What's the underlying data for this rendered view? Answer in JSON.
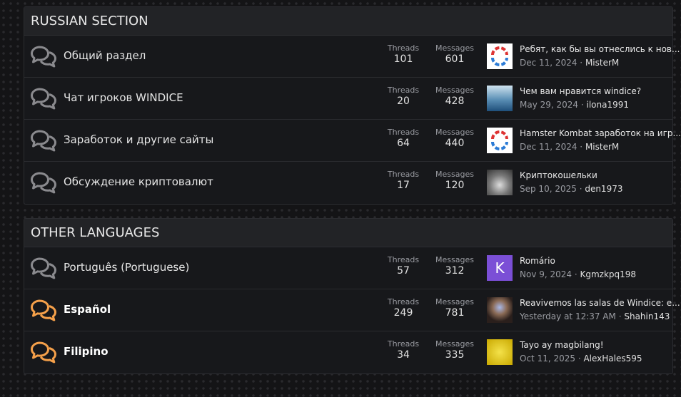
{
  "sections": [
    {
      "title": "RUSSIAN SECTION",
      "forums": [
        {
          "name": "Общий раздел",
          "unread": false,
          "threads_label": "Threads",
          "threads": "101",
          "messages_label": "Messages",
          "messages": "601",
          "latest_title": "Ребят, как бы вы отнеслись к нов...",
          "latest_date": "Dec 11, 2024",
          "latest_user": "MisterM",
          "avatar": "logo"
        },
        {
          "name": "Чат игроков WINDICE",
          "unread": false,
          "threads_label": "Threads",
          "threads": "20",
          "messages_label": "Messages",
          "messages": "428",
          "latest_title": "Чем вам нравится windice?",
          "latest_date": "May 29, 2024",
          "latest_user": "ilona1991",
          "avatar": "photo-sea"
        },
        {
          "name": "Заработок и другие сайты",
          "unread": false,
          "threads_label": "Threads",
          "threads": "64",
          "messages_label": "Messages",
          "messages": "440",
          "latest_title": "Hamster Kombat заработок на игр...",
          "latest_date": "Dec 11, 2024",
          "latest_user": "MisterM",
          "avatar": "logo"
        },
        {
          "name": "Обсуждение криптовалют",
          "unread": false,
          "threads_label": "Threads",
          "threads": "17",
          "messages_label": "Messages",
          "messages": "120",
          "latest_title": "Криптокошельки",
          "latest_date": "Sep 10, 2025",
          "latest_user": "den1973",
          "avatar": "photo-wolf"
        }
      ]
    },
    {
      "title": "OTHER LANGUAGES",
      "forums": [
        {
          "name": "Português (Portuguese)",
          "unread": false,
          "threads_label": "Threads",
          "threads": "57",
          "messages_label": "Messages",
          "messages": "312",
          "latest_title": "Romário",
          "latest_date": "Nov 9, 2024",
          "latest_user": "Kgmzkpq198",
          "avatar": "letter",
          "avatar_letter": "K"
        },
        {
          "name": "Español",
          "unread": true,
          "threads_label": "Threads",
          "threads": "249",
          "messages_label": "Messages",
          "messages": "781",
          "latest_title": "Reavivemos las salas de Windice: e...",
          "latest_date": "Yesterday at 12:37 AM",
          "latest_user": "Shahin143",
          "avatar": "photo-person"
        },
        {
          "name": "Filipino",
          "unread": true,
          "threads_label": "Threads",
          "threads": "34",
          "messages_label": "Messages",
          "messages": "335",
          "latest_title": "Tayo ay magbilang!",
          "latest_date": "Oct 11, 2025",
          "latest_user": "AlexHales595",
          "avatar": "photo-yellow"
        }
      ]
    }
  ],
  "colors": {
    "read_icon": "#8a8a8e",
    "unread_icon": "#f5a04a",
    "letter_avatar": "#7b4fd6"
  }
}
